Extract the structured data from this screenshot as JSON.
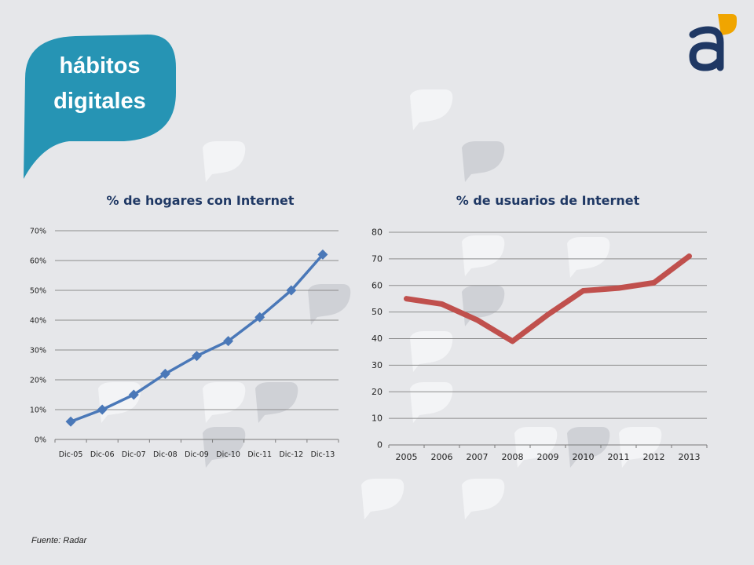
{
  "badge": {
    "line1": "hábitos",
    "line2": "digitales",
    "color": "#2694b4"
  },
  "logo": {
    "icon": "a-logo-icon",
    "letter_color": "#1f3864",
    "accent_color": "#f0a500"
  },
  "source": "Fuente: Radar",
  "chart_data": [
    {
      "type": "line",
      "title": "% de hogares con Internet",
      "categories": [
        "Dic-05",
        "Dic-06",
        "Dic-07",
        "Dic-08",
        "Dic-09",
        "Dic-10",
        "Dic-11",
        "Dic-12",
        "Dic-13"
      ],
      "values": [
        6,
        10,
        15,
        22,
        28,
        33,
        41,
        50,
        62
      ],
      "ylim": [
        0,
        70
      ],
      "yticks": [
        0,
        10,
        20,
        30,
        40,
        50,
        60,
        70
      ],
      "ytick_labels": [
        "0%",
        "10%",
        "20%",
        "30%",
        "40%",
        "50%",
        "60%",
        "70%"
      ],
      "marker": "diamond",
      "color": "#4a78b8",
      "grid": true,
      "legend": "none"
    },
    {
      "type": "line",
      "title": "% de usuarios de Internet",
      "categories": [
        "2005",
        "2006",
        "2007",
        "2008",
        "2009",
        "2010",
        "2011",
        "2012",
        "2013"
      ],
      "values": [
        55,
        53,
        47,
        39,
        49,
        58,
        59,
        61,
        71
      ],
      "ylim": [
        0,
        80
      ],
      "yticks": [
        0,
        10,
        20,
        30,
        40,
        50,
        60,
        70,
        80
      ],
      "ytick_labels": [
        "0",
        "10",
        "20",
        "30",
        "40",
        "50",
        "60",
        "70",
        "80"
      ],
      "marker": "none",
      "color": "#c0504d",
      "grid": true,
      "legend": "none"
    }
  ]
}
